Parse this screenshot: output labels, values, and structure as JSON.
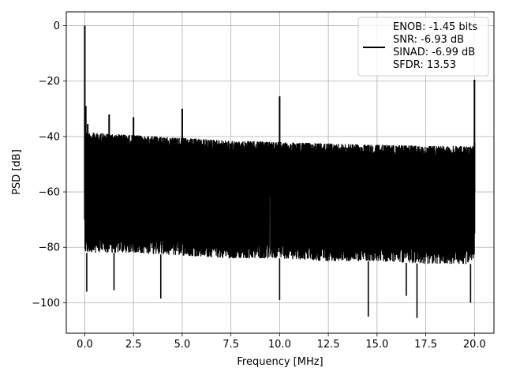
{
  "chart_data": {
    "type": "line",
    "xlabel": "Frequency [MHz]",
    "ylabel": "PSD [dB]",
    "xlim": [
      -0.95,
      21.0
    ],
    "ylim": [
      -111,
      5
    ],
    "x_ticks": [
      0.0,
      2.5,
      5.0,
      7.5,
      10.0,
      12.5,
      15.0,
      17.5,
      20.0
    ],
    "x_tick_labels": [
      "0.0",
      "2.5",
      "5.0",
      "7.5",
      "10.0",
      "12.5",
      "15.0",
      "17.5",
      "20.0"
    ],
    "y_ticks": [
      0,
      -20,
      -40,
      -60,
      -80,
      -100
    ],
    "y_tick_labels": [
      "0",
      "−20",
      "−40",
      "−60",
      "−80",
      "−100"
    ],
    "grid": true,
    "legend_position": "top-right",
    "legend_lines": [
      "ENOB: -1.45 bits",
      "SNR: -6.93 dB",
      "SINAD: -6.99 dB",
      "SFDR: 13.53"
    ],
    "line_color": "#000000",
    "noise_floor": {
      "x": [
        0.0,
        2.5,
        5.0,
        7.5,
        10.0,
        12.5,
        15.0,
        17.5,
        20.0
      ],
      "upper": [
        -38.5,
        -39.5,
        -40.5,
        -41.5,
        -42.0,
        -42.5,
        -43.0,
        -43.3,
        -43.5
      ],
      "center": [
        -60,
        -60,
        -60,
        -60,
        -60,
        -60,
        -60,
        -60,
        -60
      ],
      "lower": [
        -82,
        -82,
        -83,
        -84,
        -84,
        -85,
        -85,
        -86,
        -86
      ]
    },
    "spurs": [
      {
        "x": 0.0,
        "y": 0
      },
      {
        "x": 0.05,
        "y": -29
      },
      {
        "x": 0.15,
        "y": -35.5
      },
      {
        "x": 1.25,
        "y": -32
      },
      {
        "x": 2.5,
        "y": -33
      },
      {
        "x": 5.0,
        "y": -30
      },
      {
        "x": 10.0,
        "y": -25.5
      },
      {
        "x": 20.0,
        "y": -19.5
      }
    ],
    "dips": [
      {
        "x": 0.1,
        "y": -96
      },
      {
        "x": 1.5,
        "y": -95.5
      },
      {
        "x": 3.9,
        "y": -98.5
      },
      {
        "x": 10.0,
        "y": -99
      },
      {
        "x": 14.55,
        "y": -105
      },
      {
        "x": 16.5,
        "y": -97.5
      },
      {
        "x": 17.05,
        "y": -105.5
      },
      {
        "x": 19.8,
        "y": -100
      }
    ]
  }
}
